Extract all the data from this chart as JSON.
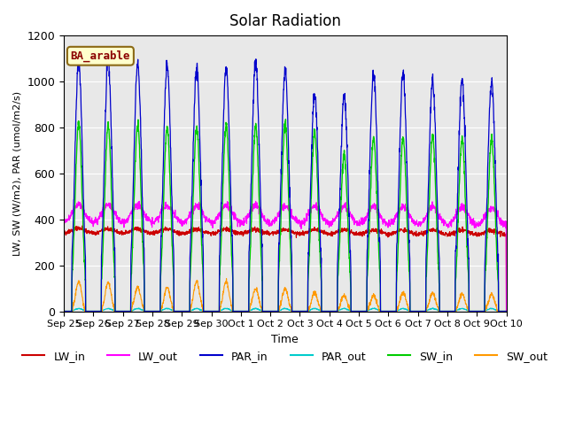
{
  "title": "Solar Radiation",
  "xlabel": "Time",
  "ylabel": "LW, SW (W/m2), PAR (umol/m2/s)",
  "annotation": "BA_arable",
  "ylim": [
    0,
    1200
  ],
  "tick_labels": [
    "Sep 25",
    "Sep 26",
    "Sep 27",
    "Sep 28",
    "Sep 29",
    "Sep 30",
    "Oct 1",
    "Oct 2",
    "Oct 3",
    "Oct 4",
    "Oct 5",
    "Oct 6",
    "Oct 7",
    "Oct 8",
    "Oct 9",
    "Oct 10"
  ],
  "colors": {
    "LW_in": "#cc0000",
    "LW_out": "#ff00ff",
    "PAR_in": "#0000cc",
    "PAR_out": "#00cccc",
    "SW_in": "#00cc00",
    "SW_out": "#ff9900"
  },
  "bg_color": "#e8e8e8",
  "n_days": 15,
  "pts_per_day": 144,
  "par_in_peaks": [
    1090,
    1090,
    1075,
    1075,
    1060,
    1060,
    1090,
    1045,
    940,
    940,
    1035,
    1035,
    1005,
    1005,
    1000
  ],
  "sw_in_peaks": [
    820,
    810,
    810,
    800,
    800,
    810,
    805,
    815,
    780,
    680,
    750,
    760,
    760,
    750,
    750
  ],
  "sw_out_peaks": [
    130,
    125,
    105,
    105,
    130,
    130,
    100,
    100,
    80,
    70,
    70,
    80,
    80,
    75,
    75
  ]
}
